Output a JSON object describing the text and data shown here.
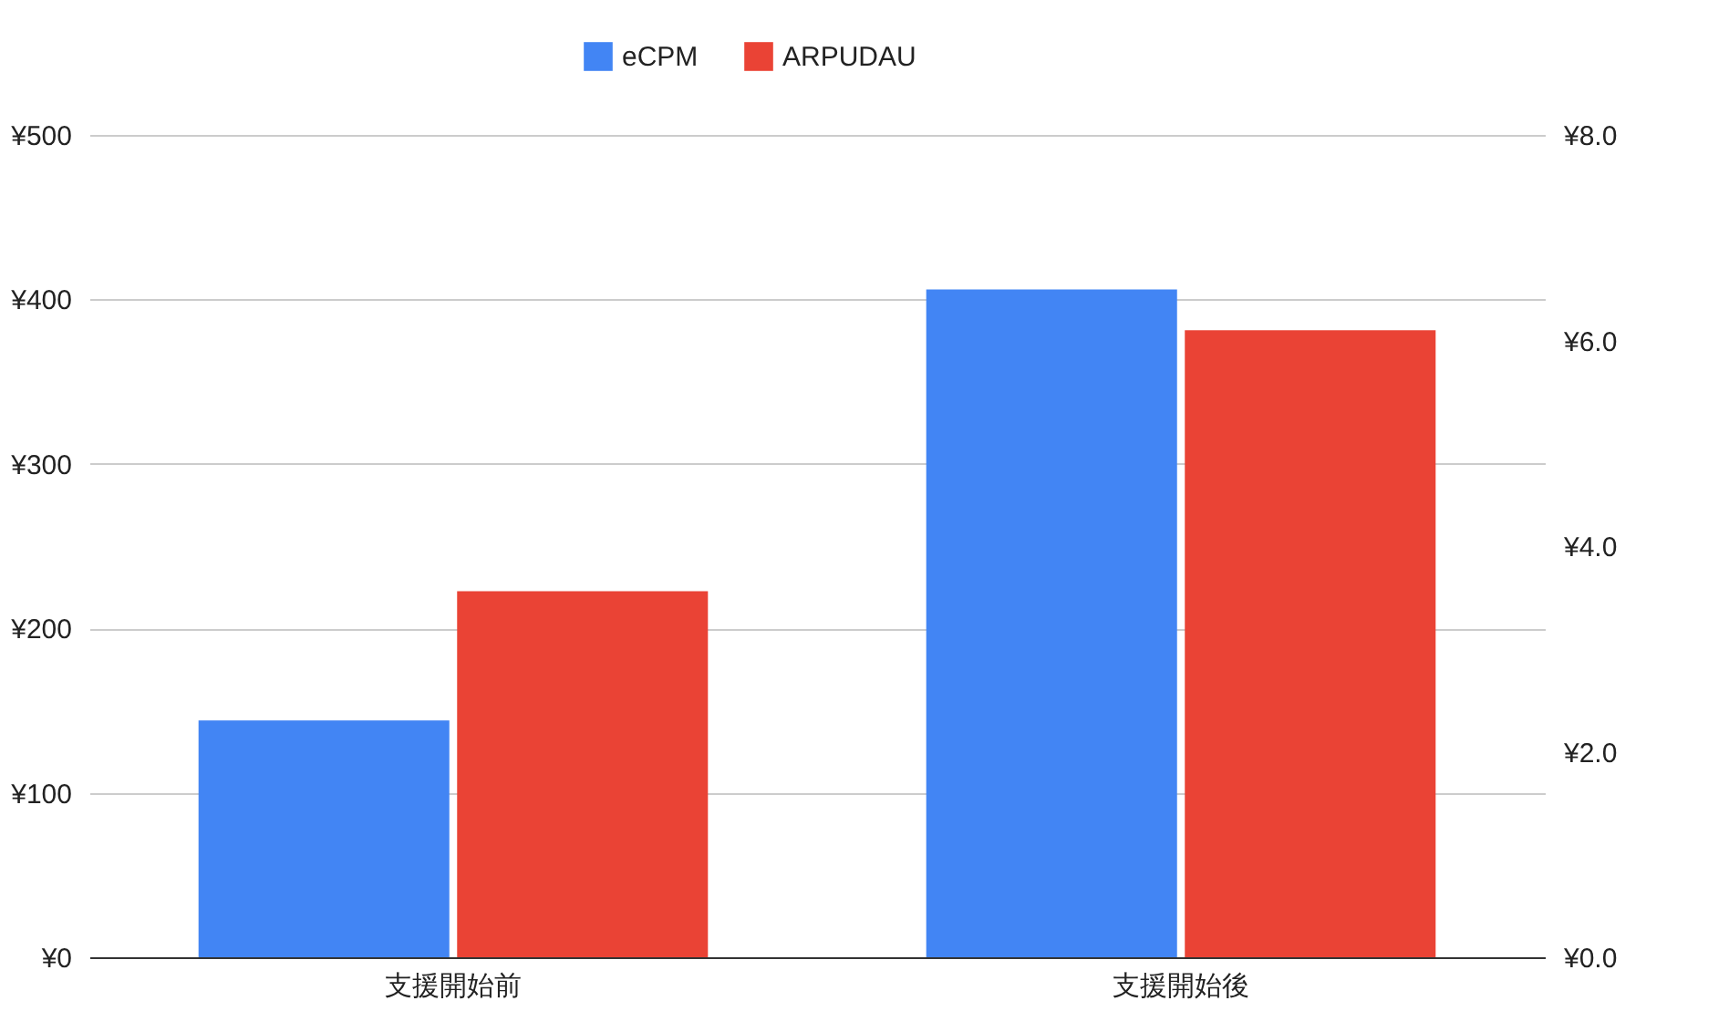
{
  "chart_data": {
    "type": "bar",
    "categories": [
      "支援開始前",
      "支援開始後"
    ],
    "series": [
      {
        "name": "eCPM",
        "color": "#4285f4",
        "values": [
          144,
          406
        ]
      },
      {
        "name": "ARPUDAU",
        "color": "#ea4335",
        "values": [
          3.56,
          6.1
        ],
        "axis": "y2"
      }
    ],
    "ylim": [
      0,
      500
    ],
    "yticks": [
      {
        "value": 0,
        "label": "¥0"
      },
      {
        "value": 100,
        "label": "¥100"
      },
      {
        "value": 200,
        "label": "¥200"
      },
      {
        "value": 300,
        "label": "¥300"
      },
      {
        "value": 400,
        "label": "¥400"
      },
      {
        "value": 500,
        "label": "¥500"
      }
    ],
    "y2lim": [
      0,
      8
    ],
    "y2ticks": [
      {
        "value": 0,
        "label": "¥0.0"
      },
      {
        "value": 2,
        "label": "¥2.0"
      },
      {
        "value": 4,
        "label": "¥4.0"
      },
      {
        "value": 6,
        "label": "¥6.0"
      },
      {
        "value": 8,
        "label": "¥8.0"
      }
    ],
    "grid": "y",
    "legend": "top"
  }
}
